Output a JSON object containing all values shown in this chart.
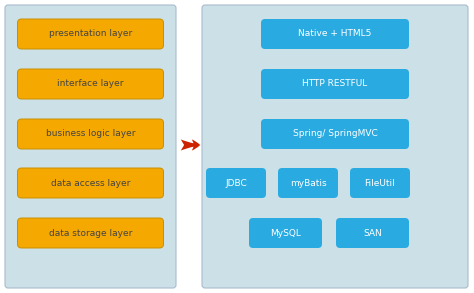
{
  "left_boxes": [
    "presentation layer",
    "interface layer",
    "business logic layer",
    "data access layer",
    "data storage layer"
  ],
  "right_single_boxes": [
    "Native + HTML5",
    "HTTP RESTFUL",
    "Spring/ SpringMVC"
  ],
  "right_triple_boxes": [
    "JDBC",
    "myBatis",
    "FileUtil"
  ],
  "right_double_boxes": [
    "MySQL",
    "SAN"
  ],
  "left_bg_color": "#cce0e8",
  "right_bg_color": "#cce0e8",
  "left_box_color": "#f5a800",
  "right_box_color": "#29abe2",
  "arrow_color": "#cc2200",
  "left_text_color": "#444444",
  "right_text_color": "#ffffff",
  "fig_bg": "#ffffff",
  "panel_edge_color": "#aabbcc",
  "left_box_edge": "#c89000",
  "right_box_edge": "none"
}
